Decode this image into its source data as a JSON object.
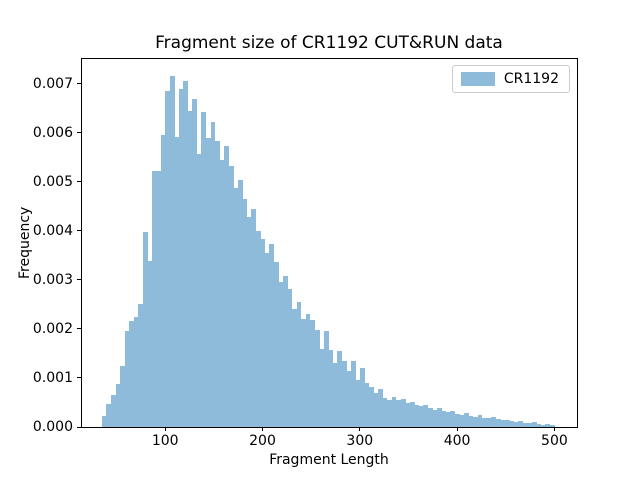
{
  "window": {
    "background": "#ffffff"
  },
  "chart_data": {
    "type": "bar",
    "subtype": "histogram",
    "title": "Fragment size of CR1192 CUT&RUN data",
    "xlabel": "Fragment Length",
    "ylabel": "Frequency",
    "legend": {
      "label": "CR1192",
      "position": "upper right"
    },
    "bar_color": "#8FBBDA",
    "axis_color": "#000000",
    "grid": false,
    "xlim": [
      14.5,
      523.2
    ],
    "ylim": [
      0,
      0.00751
    ],
    "xticks": [
      100,
      200,
      300,
      400,
      500
    ],
    "xtick_labels": [
      "100",
      "200",
      "300",
      "400",
      "500"
    ],
    "yticks": [
      0,
      0.001,
      0.002,
      0.003,
      0.004,
      0.005,
      0.006,
      0.007
    ],
    "ytick_labels": [
      "0.000",
      "0.001",
      "0.002",
      "0.003",
      "0.004",
      "0.005",
      "0.006",
      "0.007"
    ],
    "bin_start": 35,
    "bin_width": 4.65,
    "frequencies": [
      0.00022,
      0.00047,
      0.00066,
      0.00087,
      0.00124,
      0.00195,
      0.00216,
      0.00224,
      0.00252,
      0.00397,
      0.00339,
      0.00522,
      0.00522,
      0.00596,
      0.00685,
      0.00716,
      0.00592,
      0.0069,
      0.00706,
      0.00645,
      0.0067,
      0.00558,
      0.00642,
      0.0059,
      0.00623,
      0.00583,
      0.00545,
      0.00573,
      0.00533,
      0.00488,
      0.00505,
      0.00466,
      0.00429,
      0.00445,
      0.004,
      0.00384,
      0.00355,
      0.00373,
      0.00336,
      0.00295,
      0.00308,
      0.00282,
      0.00241,
      0.00255,
      0.00221,
      0.00231,
      0.00219,
      0.00197,
      0.0016,
      0.00195,
      0.00158,
      0.0013,
      0.00155,
      0.00135,
      0.00115,
      0.00135,
      0.00095,
      0.0012,
      0.0009,
      0.00082,
      0.0007,
      0.00078,
      0.0006,
      0.00055,
      0.00062,
      0.00055,
      0.00058,
      0.00048,
      0.00052,
      0.00045,
      0.00042,
      0.00045,
      0.00038,
      0.00035,
      0.00038,
      0.00032,
      0.0003,
      0.00033,
      0.00027,
      0.00025,
      0.00028,
      0.00023,
      0.00021,
      0.00024,
      0.00019,
      0.00018,
      0.0002,
      0.00016,
      0.00014,
      0.00015,
      0.00012,
      0.0001,
      0.00012,
      9e-05,
      8e-05,
      0.0001,
      7e-05,
      5e-05,
      6e-05,
      4e-05
    ]
  }
}
